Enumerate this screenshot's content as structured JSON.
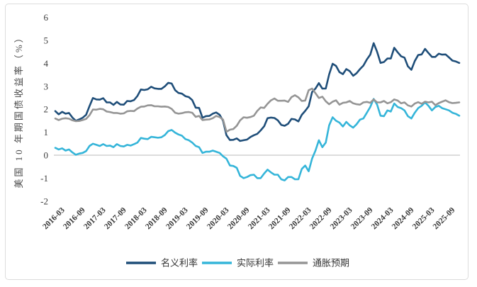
{
  "page": {
    "background": "#ffffff",
    "frame_color": "#dcdcdc"
  },
  "chart_data": {
    "type": "line",
    "title": "",
    "ylabel": "美国 10 年期国债收益率（%）",
    "xlabel": "",
    "ylim": [
      -2,
      6
    ],
    "yticks": [
      6,
      5,
      4,
      3,
      2,
      1,
      0,
      -1,
      -2
    ],
    "grid": false,
    "zero_line": true,
    "zero_line_color": "#c8c8c8",
    "legend_position": "bottom",
    "tick_color": "#3a3a3a",
    "xtick_labels": [
      "2016-03",
      "2016-09",
      "2017-03",
      "2017-09",
      "2018-03",
      "2018-09",
      "2019-03",
      "2019-09",
      "2020-03",
      "2020-09",
      "2021-03",
      "2021-09",
      "2022-03",
      "2022-09",
      "2023-03",
      "2023-09",
      "2024-03",
      "2024-09",
      "2025-03",
      "2025-09"
    ],
    "x_months": [
      "2016-01",
      "2016-02",
      "2016-03",
      "2016-04",
      "2016-05",
      "2016-06",
      "2016-07",
      "2016-08",
      "2016-09",
      "2016-10",
      "2016-11",
      "2016-12",
      "2017-01",
      "2017-02",
      "2017-03",
      "2017-04",
      "2017-05",
      "2017-06",
      "2017-07",
      "2017-08",
      "2017-09",
      "2017-10",
      "2017-11",
      "2017-12",
      "2018-01",
      "2018-02",
      "2018-03",
      "2018-04",
      "2018-05",
      "2018-06",
      "2018-07",
      "2018-08",
      "2018-09",
      "2018-10",
      "2018-11",
      "2018-12",
      "2019-01",
      "2019-02",
      "2019-03",
      "2019-04",
      "2019-05",
      "2019-06",
      "2019-07",
      "2019-08",
      "2019-09",
      "2019-10",
      "2019-11",
      "2019-12",
      "2020-01",
      "2020-02",
      "2020-03",
      "2020-04",
      "2020-05",
      "2020-06",
      "2020-07",
      "2020-08",
      "2020-09",
      "2020-10",
      "2020-11",
      "2020-12",
      "2021-01",
      "2021-02",
      "2021-03",
      "2021-04",
      "2021-05",
      "2021-06",
      "2021-07",
      "2021-08",
      "2021-09",
      "2021-10",
      "2021-11",
      "2021-12",
      "2022-01",
      "2022-02",
      "2022-03",
      "2022-04",
      "2022-05",
      "2022-06",
      "2022-07",
      "2022-08",
      "2022-09",
      "2022-10",
      "2022-11",
      "2022-12",
      "2023-01",
      "2023-02",
      "2023-03",
      "2023-04",
      "2023-05",
      "2023-06",
      "2023-07",
      "2023-08",
      "2023-09",
      "2023-10",
      "2023-11",
      "2023-12",
      "2024-01",
      "2024-02",
      "2024-03",
      "2024-04",
      "2024-05",
      "2024-06",
      "2024-07",
      "2024-08",
      "2024-09",
      "2024-10",
      "2024-11",
      "2024-12",
      "2025-01",
      "2025-02",
      "2025-03",
      "2025-04",
      "2025-05",
      "2025-06",
      "2025-07",
      "2025-08",
      "2025-09",
      "2025-10",
      "2025-11"
    ],
    "series": [
      {
        "name": "名义利率",
        "color": "#1f4e79",
        "values": [
          1.92,
          1.78,
          1.89,
          1.81,
          1.84,
          1.64,
          1.5,
          1.56,
          1.63,
          1.76,
          2.14,
          2.49,
          2.43,
          2.42,
          2.48,
          2.3,
          2.3,
          2.19,
          2.32,
          2.21,
          2.2,
          2.36,
          2.35,
          2.4,
          2.58,
          2.86,
          2.84,
          2.87,
          2.98,
          2.91,
          2.89,
          2.89,
          3.0,
          3.15,
          3.12,
          2.83,
          2.71,
          2.68,
          2.57,
          2.53,
          2.4,
          2.07,
          2.06,
          1.63,
          1.7,
          1.71,
          1.81,
          1.86,
          1.76,
          1.5,
          0.87,
          0.66,
          0.67,
          0.73,
          0.62,
          0.65,
          0.68,
          0.79,
          0.87,
          0.93,
          1.08,
          1.26,
          1.61,
          1.64,
          1.62,
          1.52,
          1.32,
          1.28,
          1.37,
          1.58,
          1.56,
          1.47,
          1.76,
          1.93,
          2.13,
          2.75,
          2.9,
          3.14,
          2.9,
          2.9,
          3.52,
          3.98,
          3.89,
          3.62,
          3.53,
          3.75,
          3.66,
          3.46,
          3.57,
          3.75,
          3.9,
          4.17,
          4.38,
          4.88,
          4.5,
          4.02,
          4.06,
          4.21,
          4.21,
          4.68,
          4.48,
          4.31,
          4.25,
          3.87,
          3.72,
          4.1,
          4.36,
          4.39,
          4.63,
          4.45,
          4.28,
          4.28,
          4.42,
          4.38,
          4.39,
          4.26,
          4.12,
          4.08,
          4.02
        ]
      },
      {
        "name": "实际利率",
        "color": "#35b5d9",
        "values": [
          0.32,
          0.25,
          0.3,
          0.2,
          0.25,
          0.12,
          0.02,
          0.07,
          0.1,
          0.18,
          0.4,
          0.5,
          0.45,
          0.4,
          0.48,
          0.4,
          0.42,
          0.35,
          0.48,
          0.4,
          0.38,
          0.45,
          0.42,
          0.48,
          0.55,
          0.75,
          0.72,
          0.7,
          0.8,
          0.78,
          0.76,
          0.78,
          0.88,
          1.05,
          1.1,
          0.98,
          0.9,
          0.85,
          0.7,
          0.65,
          0.55,
          0.4,
          0.35,
          0.1,
          0.15,
          0.15,
          0.2,
          0.15,
          0.1,
          -0.05,
          -0.15,
          -0.45,
          -0.47,
          -0.55,
          -0.9,
          -1.0,
          -0.95,
          -0.87,
          -0.85,
          -1.0,
          -1.0,
          -0.8,
          -0.63,
          -0.75,
          -0.85,
          -0.85,
          -1.05,
          -1.1,
          -0.95,
          -0.95,
          -1.05,
          -1.05,
          -0.6,
          -0.45,
          -0.7,
          -0.15,
          0.2,
          0.65,
          0.35,
          0.55,
          1.3,
          1.65,
          1.5,
          1.42,
          1.25,
          1.45,
          1.3,
          1.2,
          1.35,
          1.55,
          1.6,
          1.85,
          2.1,
          2.45,
          2.2,
          1.72,
          1.7,
          1.95,
          1.9,
          2.25,
          2.1,
          2.05,
          1.95,
          1.7,
          1.6,
          1.85,
          2.05,
          2.15,
          2.3,
          2.15,
          1.95,
          2.1,
          2.15,
          2.05,
          2.0,
          1.95,
          1.85,
          1.8,
          1.72
        ]
      },
      {
        "name": "通胀预期",
        "color": "#959595",
        "values": [
          1.6,
          1.53,
          1.59,
          1.61,
          1.59,
          1.52,
          1.48,
          1.49,
          1.53,
          1.58,
          1.74,
          1.99,
          1.98,
          2.02,
          2.0,
          1.9,
          1.88,
          1.84,
          1.84,
          1.81,
          1.82,
          1.91,
          1.93,
          1.92,
          2.03,
          2.11,
          2.12,
          2.17,
          2.18,
          2.13,
          2.13,
          2.11,
          2.12,
          2.1,
          2.02,
          1.85,
          1.81,
          1.83,
          1.87,
          1.88,
          1.85,
          1.67,
          1.71,
          1.53,
          1.55,
          1.56,
          1.61,
          1.71,
          1.66,
          1.55,
          1.02,
          1.11,
          1.14,
          1.28,
          1.52,
          1.65,
          1.63,
          1.66,
          1.72,
          1.93,
          2.08,
          2.06,
          2.24,
          2.39,
          2.47,
          2.37,
          2.37,
          2.38,
          2.32,
          2.53,
          2.61,
          2.52,
          2.36,
          2.38,
          2.83,
          2.9,
          2.7,
          2.49,
          2.55,
          2.35,
          2.22,
          2.33,
          2.39,
          2.2,
          2.28,
          2.3,
          2.36,
          2.26,
          2.22,
          2.2,
          2.3,
          2.32,
          2.28,
          2.43,
          2.3,
          2.3,
          2.36,
          2.26,
          2.31,
          2.43,
          2.38,
          2.26,
          2.3,
          2.17,
          2.12,
          2.25,
          2.31,
          2.24,
          2.33,
          2.3,
          2.33,
          2.18,
          2.27,
          2.33,
          2.39,
          2.31,
          2.27,
          2.28,
          2.3
        ]
      }
    ]
  }
}
